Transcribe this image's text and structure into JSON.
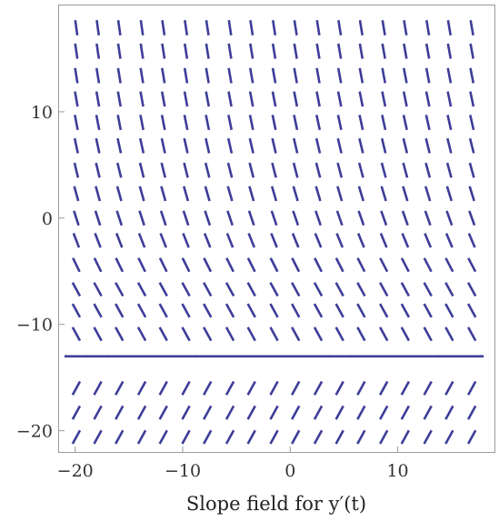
{
  "chart_data": {
    "type": "slope_field",
    "equation_label": "y'(t)",
    "xlabel": "Slope field for y′(t)",
    "xlim": [
      -21.5,
      19
    ],
    "ylim": [
      -22,
      20
    ],
    "x_ticks": [
      -20,
      -10,
      0,
      10
    ],
    "x_tick_labels": [
      "−20",
      "−10",
      "0",
      "10"
    ],
    "y_ticks": [
      -20,
      -10,
      0,
      10
    ],
    "y_tick_labels": [
      "−20",
      "−10",
      "0",
      "10"
    ],
    "equilibrium_y": -13,
    "grid_x": [
      -19.9,
      -17.9,
      -15.9,
      -13.8,
      -11.8,
      -9.7,
      -7.7,
      -5.6,
      -3.6,
      -1.5,
      0.5,
      2.6,
      4.6,
      6.6,
      8.7,
      10.7,
      12.8,
      14.8,
      16.9
    ],
    "grid_y": [
      -20.6,
      -18.3,
      -16.0,
      -13.0,
      -10.9,
      -8.7,
      -6.7,
      -4.4,
      -2.1,
      0.0,
      2.3,
      4.5,
      6.8,
      9.0,
      11.2,
      13.4,
      15.7,
      17.9
    ],
    "grid": false,
    "legend": "none"
  },
  "colors": {
    "segment": "#3d3d99",
    "frame": "#9a9a9a",
    "background": "#ffffff"
  }
}
